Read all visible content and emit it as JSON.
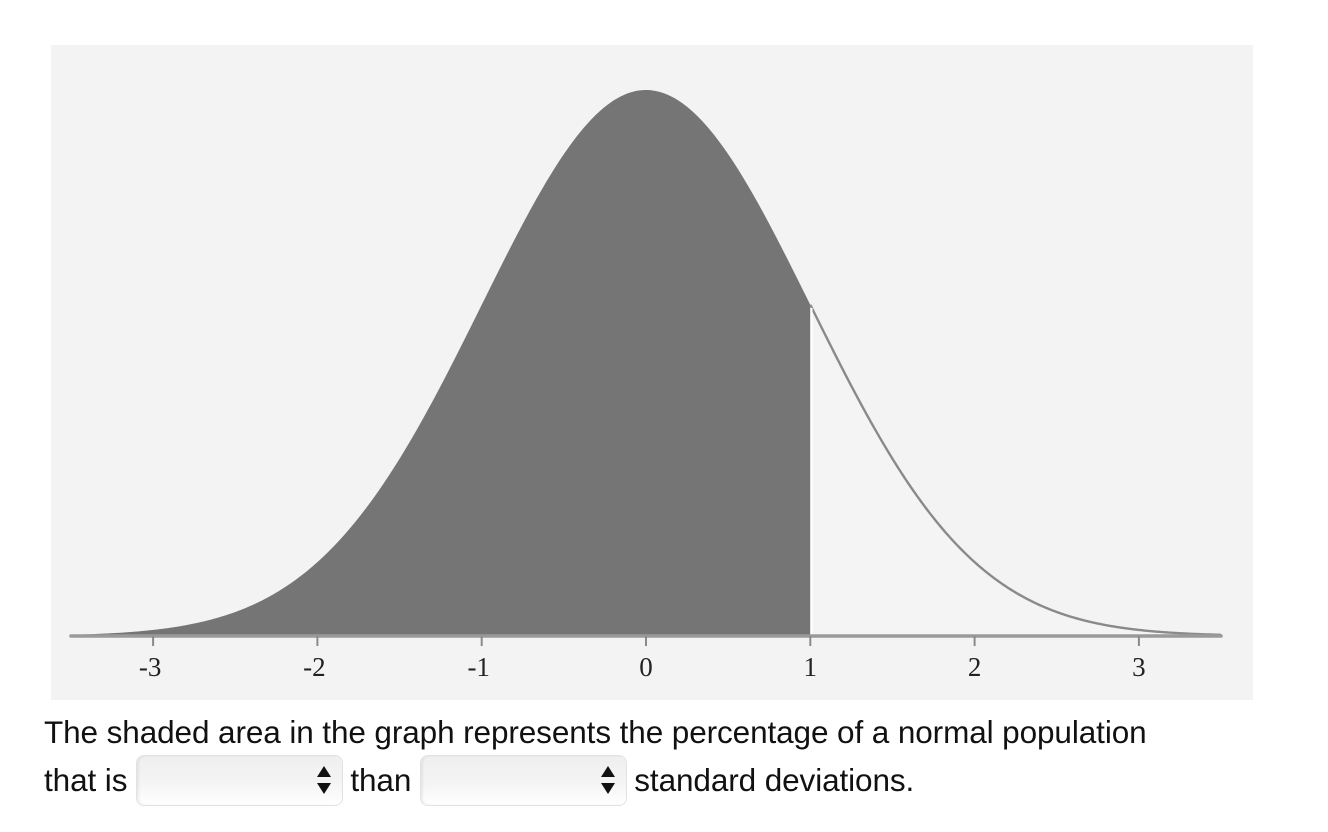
{
  "chart_data": {
    "type": "area",
    "title": "",
    "xlabel": "",
    "ylabel": "",
    "distribution": "standard normal",
    "xlim": [
      -3.5,
      3.5
    ],
    "x_ticks": [
      -3,
      -2,
      -1,
      0,
      1,
      2,
      3
    ],
    "x_tick_labels": [
      "-3",
      "-2",
      "-1",
      "0",
      "1",
      "2",
      "3"
    ],
    "shaded_region": {
      "from": "-inf",
      "to": 1
    },
    "unshaded_region": {
      "from": 1,
      "to": "+inf"
    },
    "grid": false,
    "legend": null,
    "colors": {
      "background": "#f3f3f3",
      "shaded_fill": "#757575",
      "curve_outline": "#8a8a8a",
      "axis": "#9a9a9a"
    }
  },
  "question": {
    "line1": "The shaded area in the graph represents the percentage of a normal population",
    "line2_prefix": "that is",
    "line2_middle": "than",
    "line2_suffix": "standard deviations.",
    "select1": {
      "selected_value": "",
      "icon": "up-down-arrows-icon"
    },
    "select2": {
      "selected_value": "",
      "icon": "up-down-arrows-icon"
    }
  }
}
